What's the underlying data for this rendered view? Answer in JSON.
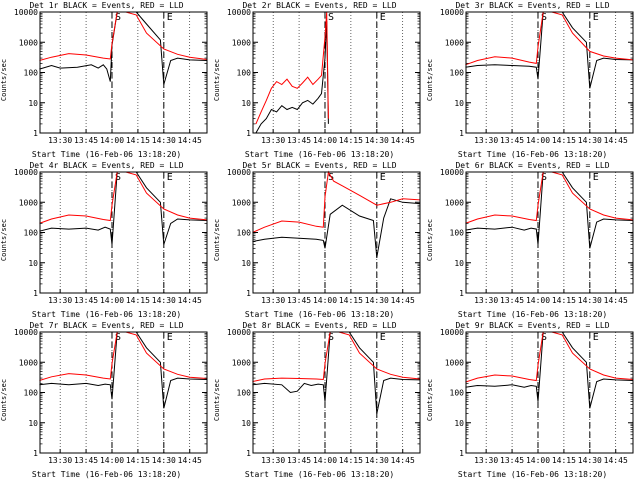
{
  "chart_data": [
    {
      "type": "line",
      "title": "Det 1r BLACK = Events, RED = LLD",
      "xlabel": "Start Time (16-Feb-06 13:18:20)",
      "ylabel": "Counts/sec",
      "x_ticks": [
        "13:30",
        "13:45",
        "14:00",
        "14:15",
        "14:30",
        "14:45"
      ],
      "y_ticks": [
        "1",
        "10",
        "100",
        "1000",
        "10000"
      ],
      "y_scale": "log",
      "ylim": [
        1,
        10000
      ],
      "markers": [
        {
          "label": "S",
          "time": "14:00"
        },
        {
          "label": "E",
          "time": "14:30"
        }
      ],
      "series": [
        {
          "name": "Events",
          "color": "#000000",
          "x": [
            "13:18",
            "13:25",
            "13:30",
            "13:40",
            "13:48",
            "13:52",
            "13:55",
            "13:57",
            "13:59",
            "14:00",
            "14:03",
            "14:08",
            "14:14",
            "14:20",
            "14:28",
            "14:30",
            "14:34",
            "14:38",
            "14:45",
            "14:55"
          ],
          "y": [
            130,
            170,
            140,
            150,
            180,
            140,
            180,
            130,
            50,
            800,
            10000,
            10000,
            10000,
            4000,
            1200,
            40,
            250,
            300,
            260,
            250
          ]
        },
        {
          "name": "LLD",
          "color": "#ff0000",
          "x": [
            "13:18",
            "13:25",
            "13:35",
            "13:45",
            "13:55",
            "13:59",
            "14:00",
            "14:03",
            "14:08",
            "14:14",
            "14:20",
            "14:30",
            "14:38",
            "14:45",
            "14:55"
          ],
          "y": [
            250,
            320,
            420,
            380,
            300,
            280,
            900,
            10000,
            10000,
            8000,
            2000,
            600,
            400,
            320,
            270
          ]
        }
      ]
    },
    {
      "type": "line",
      "title": "Det 2r BLACK = Events, RED = LLD",
      "xlabel": "Start Time (16-Feb-06 13:18:20)",
      "ylabel": "Counts/sec",
      "x_ticks": [
        "13:30",
        "13:45",
        "14:00",
        "14:15",
        "14:30",
        "14:45"
      ],
      "y_ticks": [
        "1",
        "10",
        "100",
        "1000",
        "10000"
      ],
      "y_scale": "log",
      "ylim": [
        1,
        10000
      ],
      "markers": [
        {
          "label": "S",
          "time": "14:00"
        },
        {
          "label": "E",
          "time": "14:30"
        }
      ],
      "series": [
        {
          "name": "Events",
          "color": "#000000",
          "x": [
            "13:20",
            "13:23",
            "13:26",
            "13:29",
            "13:32",
            "13:35",
            "13:38",
            "13:41",
            "13:44",
            "13:47",
            "13:50",
            "13:53",
            "13:56",
            "13:58",
            "14:00",
            "14:01",
            "14:02"
          ],
          "y": [
            1,
            2,
            3,
            6,
            5,
            8,
            6,
            7,
            6,
            10,
            12,
            9,
            14,
            20,
            300,
            5000,
            2
          ]
        },
        {
          "name": "LLD",
          "color": "#ff0000",
          "x": [
            "13:20",
            "13:23",
            "13:26",
            "13:29",
            "13:32",
            "13:35",
            "13:38",
            "13:41",
            "13:44",
            "13:47",
            "13:50",
            "13:53",
            "13:56",
            "13:58",
            "14:00",
            "14:01",
            "14:02"
          ],
          "y": [
            2,
            5,
            12,
            30,
            50,
            40,
            60,
            35,
            30,
            45,
            70,
            40,
            60,
            80,
            1500,
            10000,
            3
          ]
        }
      ]
    },
    {
      "type": "line",
      "title": "Det 3r BLACK = Events, RED = LLD",
      "xlabel": "Start Time (16-Feb-06 13:18:20)",
      "ylabel": "Counts/sec",
      "x_ticks": [
        "13:30",
        "13:45",
        "14:00",
        "14:15",
        "14:30",
        "14:45"
      ],
      "y_ticks": [
        "1",
        "10",
        "100",
        "1000",
        "10000"
      ],
      "y_scale": "log",
      "ylim": [
        1,
        10000
      ],
      "markers": [
        {
          "label": "S",
          "time": "14:00"
        },
        {
          "label": "E",
          "time": "14:30"
        }
      ],
      "series": [
        {
          "name": "Events",
          "color": "#000000",
          "x": [
            "13:18",
            "13:25",
            "13:35",
            "13:45",
            "13:55",
            "13:59",
            "14:00",
            "14:03",
            "14:08",
            "14:14",
            "14:20",
            "14:28",
            "14:30",
            "14:34",
            "14:38",
            "14:45",
            "14:55"
          ],
          "y": [
            150,
            170,
            180,
            170,
            160,
            150,
            60,
            10000,
            10000,
            10000,
            3000,
            1000,
            30,
            250,
            300,
            270,
            260
          ]
        },
        {
          "name": "LLD",
          "color": "#ff0000",
          "x": [
            "13:18",
            "13:25",
            "13:35",
            "13:45",
            "13:55",
            "13:59",
            "14:00",
            "14:03",
            "14:08",
            "14:14",
            "14:20",
            "14:30",
            "14:38",
            "14:45",
            "14:55"
          ],
          "y": [
            180,
            250,
            330,
            300,
            220,
            200,
            700,
            10000,
            10000,
            8000,
            2000,
            500,
            350,
            300,
            260
          ]
        }
      ]
    },
    {
      "type": "line",
      "title": "Det 4r BLACK = Events, RED = LLD",
      "xlabel": "Start Time (16-Feb-06 13:18:20)",
      "ylabel": "Counts/sec",
      "x_ticks": [
        "13:30",
        "13:45",
        "14:00",
        "14:15",
        "14:30",
        "14:45"
      ],
      "y_ticks": [
        "1",
        "10",
        "100",
        "1000",
        "10000"
      ],
      "y_scale": "log",
      "ylim": [
        1,
        10000
      ],
      "markers": [
        {
          "label": "S",
          "time": "14:00"
        },
        {
          "label": "E",
          "time": "14:30"
        }
      ],
      "series": [
        {
          "name": "Events",
          "color": "#000000",
          "x": [
            "13:18",
            "13:25",
            "13:35",
            "13:45",
            "13:52",
            "13:56",
            "13:59",
            "14:00",
            "14:03",
            "14:08",
            "14:14",
            "14:20",
            "14:28",
            "14:30",
            "14:34",
            "14:38",
            "14:45",
            "14:55"
          ],
          "y": [
            110,
            140,
            130,
            140,
            120,
            150,
            130,
            40,
            10000,
            10000,
            10000,
            3000,
            1000,
            40,
            200,
            280,
            260,
            250
          ]
        },
        {
          "name": "LLD",
          "color": "#ff0000",
          "x": [
            "13:18",
            "13:25",
            "13:35",
            "13:45",
            "13:55",
            "13:59",
            "14:00",
            "14:03",
            "14:08",
            "14:14",
            "14:20",
            "14:30",
            "14:38",
            "14:45",
            "14:55"
          ],
          "y": [
            200,
            280,
            380,
            350,
            270,
            250,
            800,
            10000,
            10000,
            8000,
            2000,
            600,
            380,
            300,
            260
          ]
        }
      ]
    },
    {
      "type": "line",
      "title": "Det 5r BLACK = Events, RED = LLD",
      "xlabel": "Start Time (16-Feb-06 13:18:20)",
      "ylabel": "Counts/sec",
      "x_ticks": [
        "13:30",
        "13:45",
        "14:00",
        "14:15",
        "14:30",
        "14:45"
      ],
      "y_ticks": [
        "1",
        "10",
        "100",
        "1000",
        "10000"
      ],
      "y_scale": "log",
      "ylim": [
        1,
        10000
      ],
      "markers": [
        {
          "label": "S",
          "time": "14:00"
        },
        {
          "label": "E",
          "time": "14:30"
        }
      ],
      "series": [
        {
          "name": "Events",
          "color": "#000000",
          "x": [
            "13:18",
            "13:25",
            "13:35",
            "13:45",
            "13:55",
            "13:59",
            "14:00",
            "14:03",
            "14:10",
            "14:20",
            "14:28",
            "14:30",
            "14:34",
            "14:38",
            "14:45",
            "14:55"
          ],
          "y": [
            50,
            60,
            70,
            65,
            60,
            55,
            30,
            400,
            800,
            350,
            250,
            15,
            300,
            1300,
            1000,
            900
          ]
        },
        {
          "name": "LLD",
          "color": "#ff0000",
          "x": [
            "13:18",
            "13:25",
            "13:35",
            "13:45",
            "13:55",
            "13:59",
            "14:00",
            "14:02",
            "14:05",
            "14:10",
            "14:20",
            "14:30",
            "14:38",
            "14:45",
            "14:55"
          ],
          "y": [
            100,
            150,
            240,
            220,
            160,
            150,
            1500,
            10000,
            5000,
            3500,
            1700,
            800,
            1000,
            1300,
            1200
          ]
        }
      ]
    },
    {
      "type": "line",
      "title": "Det 6r BLACK = Events, RED = LLD",
      "xlabel": "Start Time (16-Feb-06 13:18:20)",
      "ylabel": "Counts/sec",
      "x_ticks": [
        "13:30",
        "13:45",
        "14:00",
        "14:15",
        "14:30",
        "14:45"
      ],
      "y_ticks": [
        "1",
        "10",
        "100",
        "1000",
        "10000"
      ],
      "y_scale": "log",
      "ylim": [
        1,
        10000
      ],
      "markers": [
        {
          "label": "S",
          "time": "14:00"
        },
        {
          "label": "E",
          "time": "14:30"
        }
      ],
      "series": [
        {
          "name": "Events",
          "color": "#000000",
          "x": [
            "13:18",
            "13:25",
            "13:35",
            "13:45",
            "13:52",
            "13:56",
            "13:59",
            "14:00",
            "14:03",
            "14:08",
            "14:14",
            "14:20",
            "14:28",
            "14:30",
            "14:34",
            "14:38",
            "14:45",
            "14:55"
          ],
          "y": [
            120,
            140,
            130,
            150,
            120,
            140,
            130,
            40,
            10000,
            10000,
            10000,
            3000,
            1000,
            30,
            220,
            280,
            260,
            250
          ]
        },
        {
          "name": "LLD",
          "color": "#ff0000",
          "x": [
            "13:18",
            "13:25",
            "13:35",
            "13:45",
            "13:55",
            "13:59",
            "14:00",
            "14:03",
            "14:08",
            "14:14",
            "14:20",
            "14:30",
            "14:38",
            "14:45",
            "14:55"
          ],
          "y": [
            200,
            280,
            380,
            350,
            270,
            250,
            800,
            10000,
            10000,
            8000,
            2000,
            600,
            380,
            300,
            260
          ]
        }
      ]
    },
    {
      "type": "line",
      "title": "Det 7r BLACK = Events, RED = LLD",
      "xlabel": "Start Time (16-Feb-06 13:18:20)",
      "ylabel": "Counts/sec",
      "x_ticks": [
        "13:30",
        "13:45",
        "14:00",
        "14:15",
        "14:30",
        "14:45"
      ],
      "y_ticks": [
        "1",
        "10",
        "100",
        "1000",
        "10000"
      ],
      "y_scale": "log",
      "ylim": [
        1,
        10000
      ],
      "markers": [
        {
          "label": "S",
          "time": "14:00"
        },
        {
          "label": "E",
          "time": "14:30"
        }
      ],
      "series": [
        {
          "name": "Events",
          "color": "#000000",
          "x": [
            "13:18",
            "13:25",
            "13:35",
            "13:45",
            "13:52",
            "13:56",
            "13:59",
            "14:00",
            "14:03",
            "14:08",
            "14:14",
            "14:20",
            "14:28",
            "14:30",
            "14:34",
            "14:38",
            "14:45",
            "14:55"
          ],
          "y": [
            180,
            200,
            180,
            200,
            170,
            190,
            180,
            60,
            10000,
            10000,
            10000,
            3000,
            1000,
            30,
            250,
            300,
            280,
            270
          ]
        },
        {
          "name": "LLD",
          "color": "#ff0000",
          "x": [
            "13:18",
            "13:25",
            "13:35",
            "13:45",
            "13:55",
            "13:59",
            "14:00",
            "14:03",
            "14:08",
            "14:14",
            "14:20",
            "14:30",
            "14:38",
            "14:45",
            "14:55"
          ],
          "y": [
            250,
            330,
            420,
            380,
            300,
            280,
            900,
            10000,
            10000,
            8000,
            2000,
            600,
            400,
            320,
            290
          ]
        }
      ]
    },
    {
      "type": "line",
      "title": "Det 8r BLACK = Events, RED = LLD",
      "xlabel": "Start Time (16-Feb-06 13:18:20)",
      "ylabel": "Counts/sec",
      "x_ticks": [
        "13:30",
        "13:45",
        "14:00",
        "14:15",
        "14:30",
        "14:45"
      ],
      "y_ticks": [
        "1",
        "10",
        "100",
        "1000",
        "10000"
      ],
      "y_scale": "log",
      "ylim": [
        1,
        10000
      ],
      "markers": [
        {
          "label": "S",
          "time": "14:00"
        },
        {
          "label": "E",
          "time": "14:30"
        }
      ],
      "series": [
        {
          "name": "Events",
          "color": "#000000",
          "x": [
            "13:18",
            "13:25",
            "13:35",
            "13:40",
            "13:44",
            "13:48",
            "13:52",
            "13:56",
            "13:59",
            "14:00",
            "14:03",
            "14:08",
            "14:14",
            "14:20",
            "14:28",
            "14:30",
            "14:34",
            "14:38",
            "14:45",
            "14:55"
          ],
          "y": [
            180,
            200,
            180,
            100,
            110,
            200,
            170,
            190,
            180,
            50,
            10000,
            10000,
            10000,
            3000,
            1000,
            20,
            250,
            300,
            270,
            260
          ]
        },
        {
          "name": "LLD",
          "color": "#ff0000",
          "x": [
            "13:18",
            "13:25",
            "13:35",
            "13:45",
            "13:55",
            "13:59",
            "14:00",
            "14:03",
            "14:08",
            "14:14",
            "14:20",
            "14:30",
            "14:38",
            "14:45",
            "14:55"
          ],
          "y": [
            230,
            280,
            300,
            290,
            280,
            270,
            900,
            10000,
            10000,
            8000,
            2000,
            600,
            400,
            320,
            280
          ]
        }
      ]
    },
    {
      "type": "line",
      "title": "Det 9r BLACK = Events, RED = LLD",
      "xlabel": "Start Time (16-Feb-06 13:18:20)",
      "ylabel": "Counts/sec",
      "x_ticks": [
        "13:30",
        "13:45",
        "14:00",
        "14:15",
        "14:30",
        "14:45"
      ],
      "y_ticks": [
        "1",
        "10",
        "100",
        "1000",
        "10000"
      ],
      "y_scale": "log",
      "ylim": [
        1,
        10000
      ],
      "markers": [
        {
          "label": "S",
          "time": "14:00"
        },
        {
          "label": "E",
          "time": "14:30"
        }
      ],
      "series": [
        {
          "name": "Events",
          "color": "#000000",
          "x": [
            "13:18",
            "13:25",
            "13:35",
            "13:45",
            "13:52",
            "13:56",
            "13:59",
            "14:00",
            "14:03",
            "14:08",
            "14:14",
            "14:20",
            "14:28",
            "14:30",
            "14:34",
            "14:38",
            "14:45",
            "14:55"
          ],
          "y": [
            150,
            170,
            160,
            180,
            150,
            170,
            160,
            50,
            10000,
            10000,
            10000,
            3000,
            1000,
            30,
            230,
            280,
            260,
            250
          ]
        },
        {
          "name": "LLD",
          "color": "#ff0000",
          "x": [
            "13:18",
            "13:25",
            "13:35",
            "13:45",
            "13:55",
            "13:59",
            "14:00",
            "14:03",
            "14:08",
            "14:14",
            "14:20",
            "14:30",
            "14:38",
            "14:45",
            "14:55"
          ],
          "y": [
            220,
            300,
            380,
            350,
            270,
            250,
            800,
            10000,
            10000,
            8000,
            2000,
            600,
            380,
            300,
            270
          ]
        }
      ]
    }
  ]
}
